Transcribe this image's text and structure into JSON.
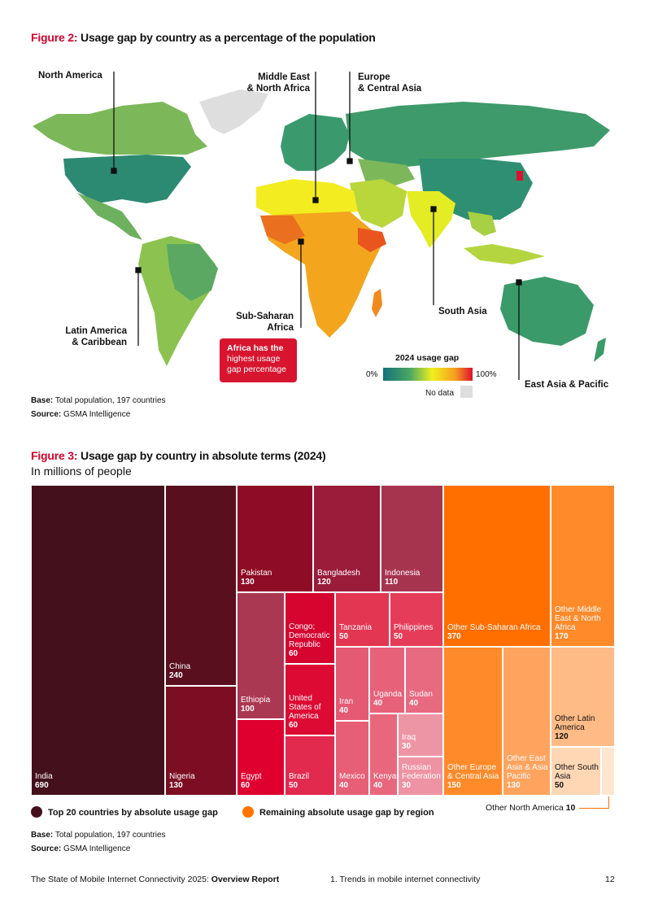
{
  "figure2": {
    "num": "Figure 2:",
    "title": "Usage gap by country as a percentage of the population",
    "regions": {
      "north_america": "North America",
      "mena_1": "Middle East",
      "mena_2": "& North Africa",
      "eca_1": "Europe",
      "eca_2": "& Central Asia",
      "ssa_1": "Sub-Saharan",
      "ssa_2": "Africa",
      "south_asia": "South Asia",
      "lac_1": "Latin America",
      "lac_2": "& Caribbean",
      "eap": "East Asia & Pacific"
    },
    "callout": [
      "Africa has the",
      "highest usage",
      "gap percentage"
    ],
    "legend": {
      "title": "2024 usage gap",
      "min": "0%",
      "max": "100%",
      "nodata": "No data"
    },
    "base_label": "Base:",
    "base": "Total population, 197 countries",
    "source_label": "Source:",
    "source": "GSMA Intelligence",
    "colors": {
      "accent": "#d4002a",
      "callout_bg": "#d8152f",
      "nodata": "#dedede"
    }
  },
  "figure3": {
    "num": "Figure 3:",
    "title": "Usage gap by country in absolute terms (2024)",
    "subtitle": "In millions of people",
    "cells": [
      {
        "label": "India",
        "value": "690",
        "color": "#44101c"
      },
      {
        "label": "China",
        "value": "240",
        "color": "#5a0f1e"
      },
      {
        "label": "Nigeria",
        "value": "130",
        "color": "#7c0d22"
      },
      {
        "label": "Pakistan",
        "value": "130",
        "color": "#8e0c25"
      },
      {
        "label": "Bangladesh",
        "value": "120",
        "color": "#9a1c3a"
      },
      {
        "label": "Indonesia",
        "value": "110",
        "color": "#a7344f"
      },
      {
        "label": "Ethiopia",
        "value": "100",
        "color": "#ab3852"
      },
      {
        "label": "Egypt",
        "value": "60",
        "color": "#df0030"
      },
      {
        "label": "Congo; Democratic Republic",
        "value": "60",
        "color": "#d60530"
      },
      {
        "label": "United States of America",
        "value": "60",
        "color": "#dd0a33"
      },
      {
        "label": "Brazil",
        "value": "50",
        "color": "#e12a4e"
      },
      {
        "label": "Tanzania",
        "value": "50",
        "color": "#e33652"
      },
      {
        "label": "Philippines",
        "value": "50",
        "color": "#e53d59"
      },
      {
        "label": "Iran",
        "value": "40",
        "color": "#e55a73"
      },
      {
        "label": "Uganda",
        "value": "40",
        "color": "#e76178"
      },
      {
        "label": "Sudan",
        "value": "40",
        "color": "#e86a80"
      },
      {
        "label": "Iraq",
        "value": "30",
        "color": "#ee95a5"
      },
      {
        "label": "Mexico",
        "value": "40",
        "color": "#e65f76"
      },
      {
        "label": "Kenya",
        "value": "40",
        "color": "#e8677d"
      },
      {
        "label": "Russian Federation",
        "value": "30",
        "color": "#ee93a3"
      },
      {
        "label": "Other Sub-Saharan Africa",
        "value": "370",
        "color": "#ff6f00"
      },
      {
        "label": "Other Middle East & North Africa",
        "value": "170",
        "color": "#ff8a2a"
      },
      {
        "label": "Other Europe & Central Asia",
        "value": "150",
        "color": "#ff8a2a"
      },
      {
        "label": "Other East Asia & Asia Pacific",
        "value": "130",
        "color": "#ffa35e"
      },
      {
        "label": "Other Latin America",
        "value": "120",
        "color": "#ffbb86"
      },
      {
        "label": "Other South Asia",
        "value": "50",
        "color": "#ffd7b5"
      },
      {
        "label": "Other North America",
        "value": "10",
        "color": "#ffe6d0"
      }
    ],
    "other_na_label": "Other North America",
    "other_na_value": "10",
    "legend": {
      "top20": "Top 20 countries by absolute usage gap",
      "top20_color": "#44101c",
      "remaining": "Remaining absolute usage gap by region",
      "remaining_color": "#ff7300"
    },
    "base_label": "Base:",
    "base": "Total population, 197 countries",
    "source_label": "Source:",
    "source": "GSMA Intelligence"
  },
  "footer": {
    "report_prefix": "The State of Mobile Internet Connectivity 2025:",
    "report_name": "Overview Report",
    "section": "1. Trends in mobile internet connectivity",
    "page": "12"
  }
}
